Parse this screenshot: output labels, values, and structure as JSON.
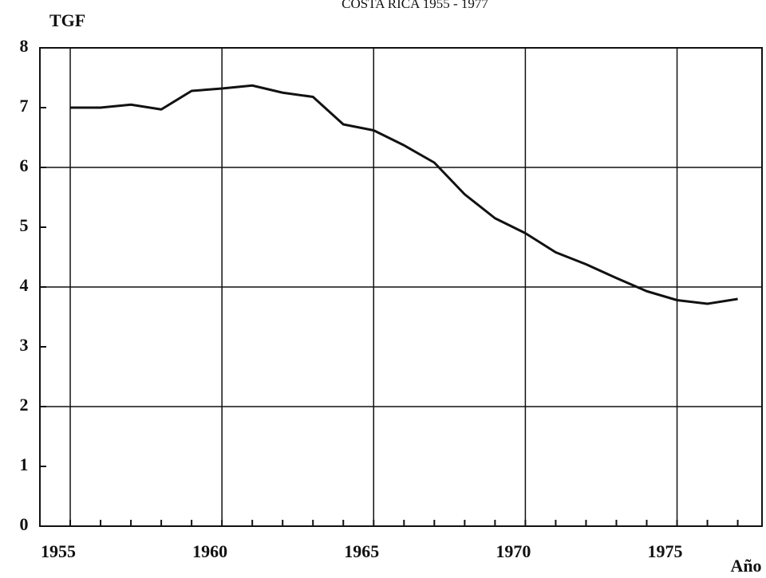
{
  "chart_data": {
    "type": "line",
    "title": "COSTA RICA 1955 - 1977",
    "ylabel": "TGF",
    "xlabel": "Año",
    "x": [
      1955,
      1956,
      1957,
      1958,
      1959,
      1960,
      1961,
      1962,
      1963,
      1964,
      1965,
      1966,
      1967,
      1968,
      1969,
      1970,
      1971,
      1972,
      1973,
      1974,
      1975,
      1976,
      1977
    ],
    "series": [
      {
        "name": "TGF",
        "color": "#111111",
        "values": [
          7.0,
          7.0,
          7.05,
          6.97,
          7.28,
          7.32,
          7.37,
          7.25,
          7.18,
          6.72,
          6.62,
          6.37,
          6.08,
          5.55,
          5.15,
          4.9,
          4.58,
          4.38,
          4.15,
          3.93,
          3.78,
          3.72,
          3.8
        ]
      }
    ],
    "xlim": [
      1954,
      1977.8
    ],
    "ylim": [
      0,
      8
    ],
    "xticks": [
      1955,
      1960,
      1965,
      1970,
      1975
    ],
    "yticks": [
      0,
      1,
      2,
      3,
      4,
      5,
      6,
      7,
      8
    ],
    "ygrid": [
      2,
      4,
      6
    ],
    "grid": true
  }
}
